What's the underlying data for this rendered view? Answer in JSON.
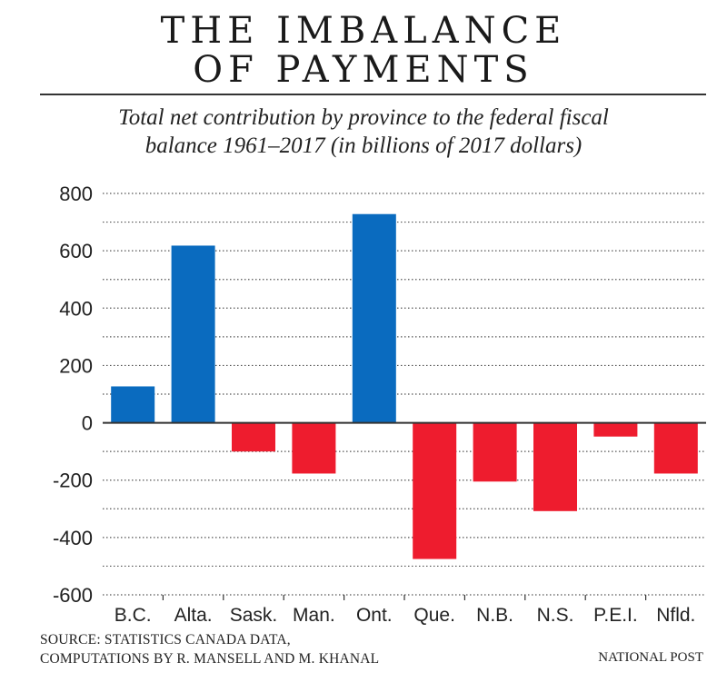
{
  "chart_data": {
    "type": "bar",
    "title": "THE IMBALANCE OF PAYMENTS",
    "title_lines": [
      "THE IMBALANCE",
      "OF PAYMENTS"
    ],
    "subtitle_lines": [
      "Total net contribution by province to the federal fiscal",
      "balance 1961–2017 (in billions of 2017 dollars)"
    ],
    "xlabel": "",
    "ylabel": "",
    "categories": [
      "B.C.",
      "Alta.",
      "Sask.",
      "Man.",
      "Ont.",
      "Que.",
      "N.B.",
      "N.S.",
      "P.E.I.",
      "Nfld."
    ],
    "values": [
      127,
      618,
      -100,
      -177,
      728,
      -475,
      -205,
      -308,
      -48,
      -177
    ],
    "ylim": [
      -600,
      800
    ],
    "yticks": [
      800,
      600,
      400,
      200,
      0,
      -200,
      -400,
      -600
    ],
    "ytick_labels": [
      "800",
      "600",
      "400",
      "200",
      "0",
      "-200",
      "-400",
      "-600"
    ],
    "minor_gridlines": [
      700,
      500,
      300,
      100,
      -100,
      -300,
      -500
    ],
    "grid": true,
    "grid_style": "dotted",
    "legend": "none",
    "colors": {
      "positive": "#0A6BBF",
      "negative": "#EE1C2E",
      "zero_line": "#333333",
      "grid": "#555555",
      "text": "#222222"
    }
  },
  "footer": {
    "source_lines": [
      "SOURCE: STATISTICS CANADA DATA,",
      "COMPUTATIONS BY R. MANSELL AND M. KHANAL"
    ],
    "credit": "NATIONAL POST"
  }
}
